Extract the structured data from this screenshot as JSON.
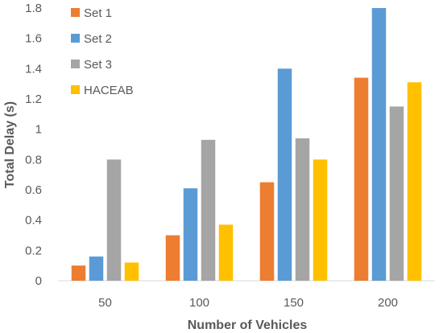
{
  "chart_data": {
    "type": "bar",
    "title": "",
    "xlabel": "Number of Vehicles",
    "ylabel": "Total Delay (s)",
    "categories": [
      "50",
      "100",
      "150",
      "200"
    ],
    "ylim": [
      0,
      1.8
    ],
    "yticks": [
      "0",
      "0.2",
      "0.4",
      "0.6",
      "0.8",
      "1",
      "1.2",
      "1.4",
      "1.6",
      "1.8"
    ],
    "grid": false,
    "legend_position": "top-left",
    "series": [
      {
        "name": "Set 1",
        "color": "#ED7D31",
        "values": [
          0.1,
          0.3,
          0.65,
          1.34
        ]
      },
      {
        "name": "Set 2",
        "color": "#5B9BD5",
        "values": [
          0.16,
          0.61,
          1.4,
          1.8
        ]
      },
      {
        "name": "Set 3",
        "color": "#A5A5A5",
        "values": [
          0.8,
          0.93,
          0.94,
          1.15
        ]
      },
      {
        "name": "HACEAB",
        "color": "#FFC000",
        "values": [
          0.12,
          0.37,
          0.8,
          1.31
        ]
      }
    ]
  }
}
